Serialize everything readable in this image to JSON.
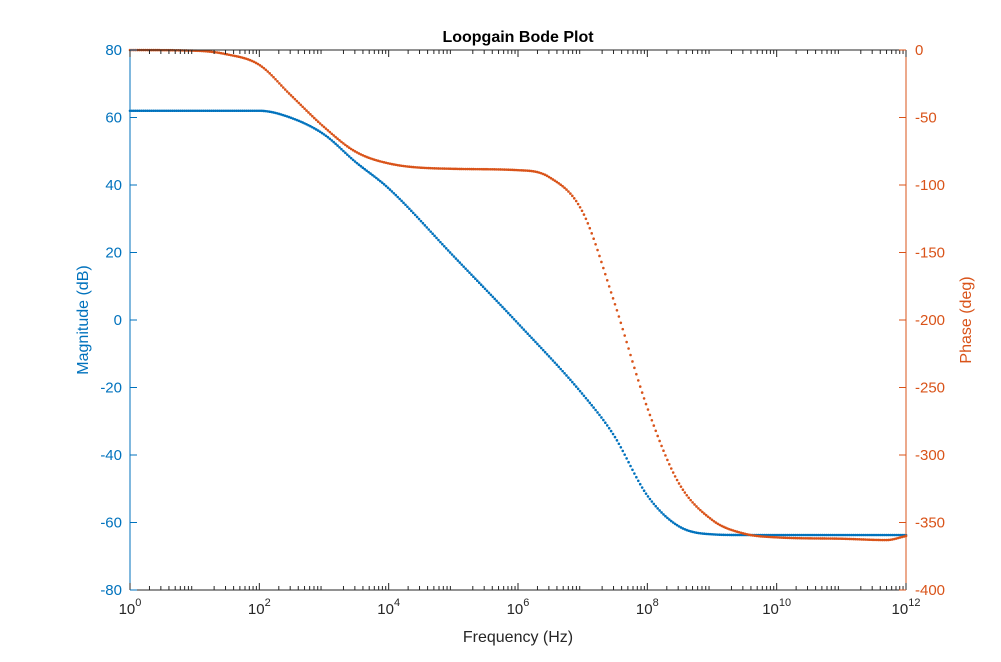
{
  "chart_data": {
    "type": "scatter",
    "title": "Loopgain Bode Plot",
    "xlabel": "Frequency (Hz)",
    "ylabel_left": "Magnitude (dB)",
    "ylabel_right": "Phase (deg)",
    "x_scale": "log",
    "xlim": [
      1,
      1000000000000
    ],
    "ylim_left": [
      -80,
      80
    ],
    "ylim_right": [
      -400,
      0
    ],
    "x_ticks": [
      {
        "base": "10",
        "exp": "0"
      },
      {
        "base": "10",
        "exp": "2"
      },
      {
        "base": "10",
        "exp": "4"
      },
      {
        "base": "10",
        "exp": "6"
      },
      {
        "base": "10",
        "exp": "8"
      },
      {
        "base": "10",
        "exp": "10"
      },
      {
        "base": "10",
        "exp": "12"
      }
    ],
    "y_ticks_left": [
      "-80",
      "-60",
      "-40",
      "-20",
      "0",
      "20",
      "40",
      "60",
      "80"
    ],
    "y_ticks_right": [
      "-400",
      "-350",
      "-300",
      "-250",
      "-200",
      "-150",
      "-100",
      "-50",
      "0"
    ],
    "grid": false,
    "colors": {
      "magnitude": "#0072BD",
      "phase": "#D95319"
    },
    "series": [
      {
        "axis": "left",
        "color": "#0072BD",
        "x": [
          1,
          10,
          100,
          300,
          1000,
          3000,
          10000,
          100000,
          1000000,
          10000000,
          30000000,
          100000000,
          300000000,
          1000000000,
          3000000000,
          10000000000,
          100000000000,
          1000000000000
        ],
        "values": [
          62,
          62,
          62,
          60,
          55,
          47,
          39,
          19,
          -1,
          -22,
          -34,
          -52,
          -61,
          -63.5,
          -63.7,
          -63.7,
          -63.7,
          -63.7
        ]
      },
      {
        "axis": "right",
        "color": "#D95319",
        "x": [
          1,
          10,
          30,
          100,
          300,
          1000,
          3000,
          10000,
          100000,
          1000000,
          3000000,
          10000000,
          30000000,
          100000000,
          300000000,
          1000000000,
          3000000000,
          10000000000,
          100000000000,
          500000000000,
          1000000000000
        ],
        "values": [
          0,
          -0.5,
          -3,
          -11,
          -33,
          -57,
          -75,
          -84,
          -88,
          -89,
          -94,
          -120,
          -185,
          -265,
          -320,
          -348,
          -358,
          -361,
          -362,
          -363,
          -360
        ]
      }
    ]
  }
}
